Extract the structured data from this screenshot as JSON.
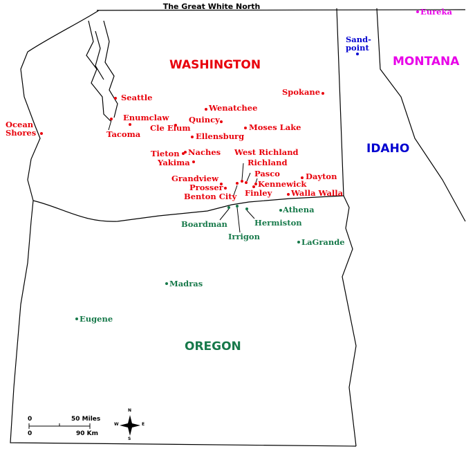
{
  "title": "The Great White North",
  "regions": [
    {
      "name": "WASHINGTON",
      "color": "#e8000b",
      "places": [
        "Seattle",
        "Tacoma",
        "Enumclaw",
        "Cle Elum",
        "Quincy",
        "Wenatchee",
        "Moses Lake",
        "Ellensburg",
        "Spokane",
        "Ocean\nShores",
        "Tieton",
        "Naches",
        "Yakima",
        "West Richland",
        "Richland",
        "Pasco",
        "Kennewick",
        "Dayton",
        "Walla Walla",
        "Finley",
        "Grandview",
        "Prosser",
        "Benton City"
      ]
    },
    {
      "name": "OREGON",
      "color": "#17794a",
      "places": [
        "Boardman",
        "Irrigon",
        "Hermiston",
        "Athena",
        "LaGrande",
        "Madras",
        "Eugene"
      ]
    },
    {
      "name": "IDAHO",
      "color": "#0000d0",
      "places": [
        "Sand-\npoint"
      ]
    },
    {
      "name": "MONTANA",
      "color": "#e800e8",
      "places": [
        "Eureka"
      ]
    }
  ],
  "scale": {
    "miles": [
      "0",
      "50 Miles"
    ],
    "km": [
      "0",
      "90 Km"
    ]
  },
  "compass": [
    "N",
    "E",
    "S",
    "W"
  ]
}
